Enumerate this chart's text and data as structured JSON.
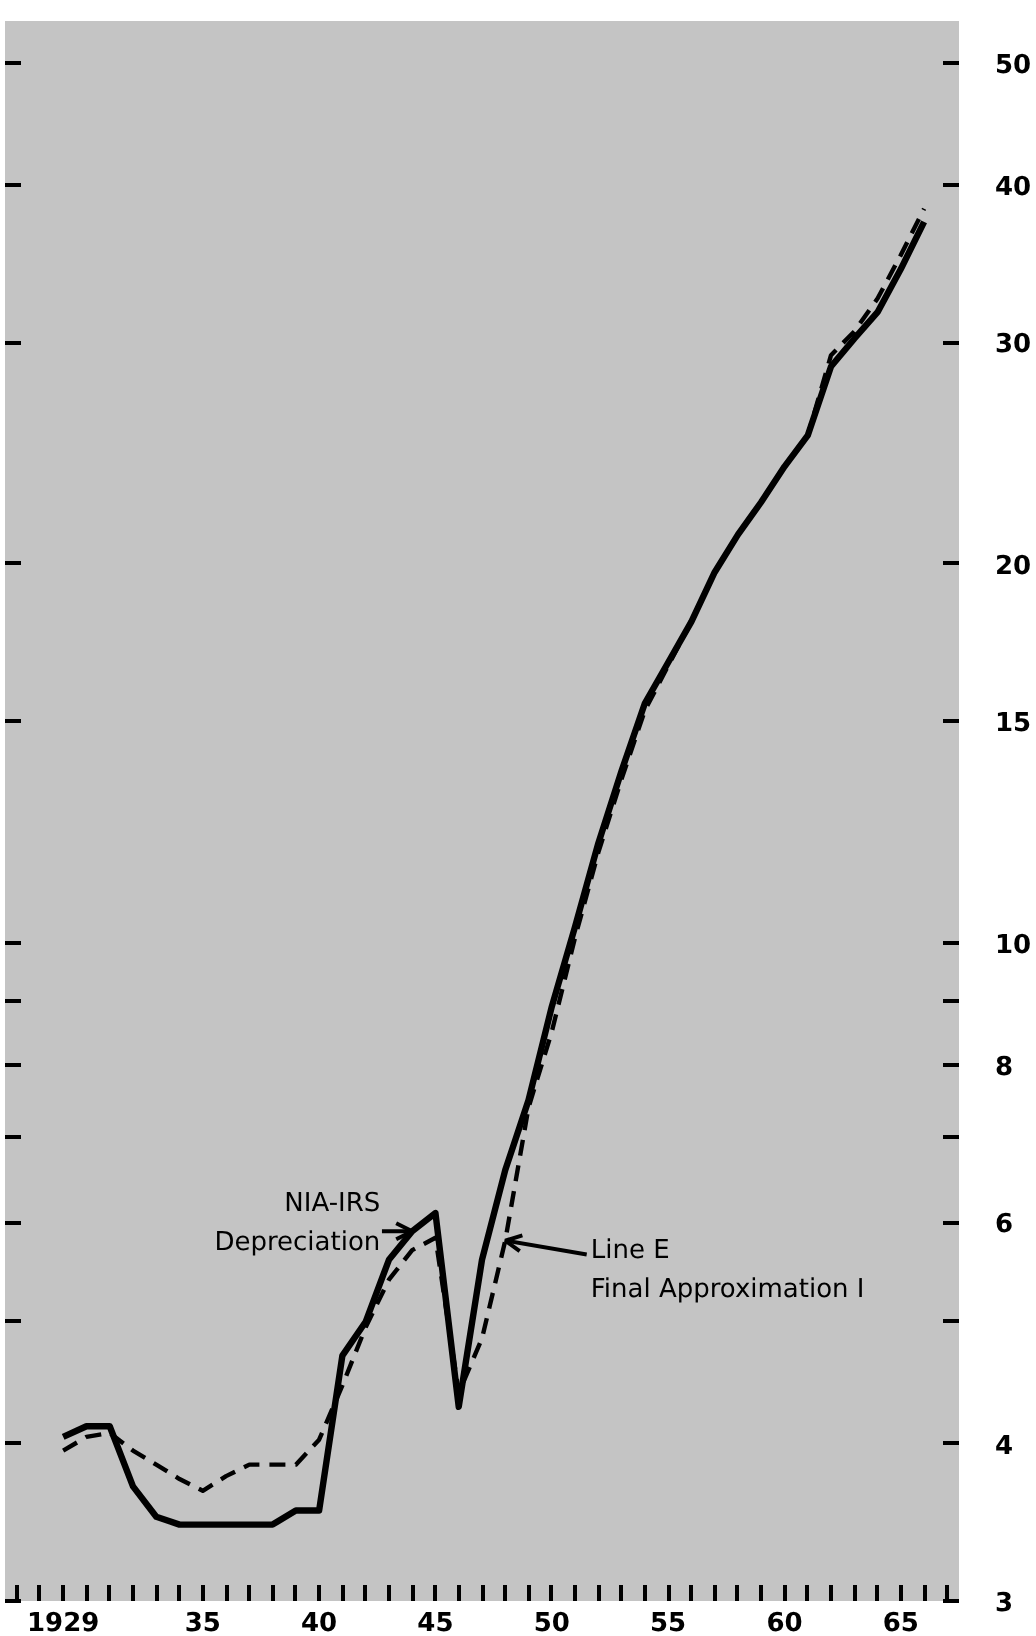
{
  "chart_data": {
    "type": "line",
    "log": "y",
    "grid": false,
    "xlim": [
      1926.5,
      1967.5
    ],
    "ylim": [
      3,
      54
    ],
    "xticks": [
      {
        "value": 1927,
        "label": null
      },
      {
        "value": 1928,
        "label": null
      },
      {
        "value": 1929,
        "label": "1929"
      },
      {
        "value": 1930,
        "label": null
      },
      {
        "value": 1931,
        "label": null
      },
      {
        "value": 1932,
        "label": null
      },
      {
        "value": 1933,
        "label": null
      },
      {
        "value": 1934,
        "label": null
      },
      {
        "value": 1935,
        "label": "35"
      },
      {
        "value": 1936,
        "label": null
      },
      {
        "value": 1937,
        "label": null
      },
      {
        "value": 1938,
        "label": null
      },
      {
        "value": 1939,
        "label": null
      },
      {
        "value": 1940,
        "label": "40"
      },
      {
        "value": 1941,
        "label": null
      },
      {
        "value": 1942,
        "label": null
      },
      {
        "value": 1943,
        "label": null
      },
      {
        "value": 1944,
        "label": null
      },
      {
        "value": 1945,
        "label": "45"
      },
      {
        "value": 1946,
        "label": null
      },
      {
        "value": 1947,
        "label": null
      },
      {
        "value": 1948,
        "label": null
      },
      {
        "value": 1949,
        "label": null
      },
      {
        "value": 1950,
        "label": "50"
      },
      {
        "value": 1951,
        "label": null
      },
      {
        "value": 1952,
        "label": null
      },
      {
        "value": 1953,
        "label": null
      },
      {
        "value": 1954,
        "label": null
      },
      {
        "value": 1955,
        "label": "55"
      },
      {
        "value": 1956,
        "label": null
      },
      {
        "value": 1957,
        "label": null
      },
      {
        "value": 1958,
        "label": null
      },
      {
        "value": 1959,
        "label": null
      },
      {
        "value": 1960,
        "label": "60"
      },
      {
        "value": 1961,
        "label": null
      },
      {
        "value": 1962,
        "label": null
      },
      {
        "value": 1963,
        "label": null
      },
      {
        "value": 1964,
        "label": null
      },
      {
        "value": 1965,
        "label": "65"
      },
      {
        "value": 1966,
        "label": null
      },
      {
        "value": 1967,
        "label": null
      }
    ],
    "yticks": [
      3,
      4,
      {
        "value": 5,
        "label": null
      },
      6,
      {
        "value": 7,
        "label": null
      },
      8,
      {
        "value": 9,
        "label": null
      },
      10,
      15,
      20,
      30,
      40,
      50
    ],
    "x": [
      1929,
      1930,
      1931,
      1932,
      1933,
      1934,
      1935,
      1936,
      1937,
      1938,
      1939,
      1940,
      1941,
      1942,
      1943,
      1944,
      1945,
      1946,
      1947,
      1948,
      1949,
      1950,
      1951,
      1952,
      1953,
      1954,
      1955,
      1956,
      1957,
      1958,
      1959,
      1960,
      1961,
      1962,
      1963,
      1964,
      1965,
      1966
    ],
    "series": [
      {
        "color": "#000000",
        "line_style": "solid",
        "values": [
          4.05,
          4.13,
          4.13,
          3.7,
          3.5,
          3.45,
          3.45,
          3.45,
          3.45,
          3.45,
          3.54,
          3.54,
          4.7,
          5.0,
          5.6,
          5.9,
          6.1,
          4.28,
          5.6,
          6.6,
          7.5,
          8.9,
          10.3,
          12.0,
          13.7,
          15.5,
          16.7,
          18.0,
          19.7,
          21.1,
          22.4,
          23.9,
          25.3,
          28.7,
          30.2,
          31.7,
          34.3,
          37.4
        ]
      },
      {
        "color": "#000000",
        "line_style": "dashed",
        "values": [
          3.95,
          4.05,
          4.08,
          3.95,
          3.85,
          3.75,
          3.67,
          3.77,
          3.85,
          3.85,
          3.85,
          4.03,
          4.45,
          4.95,
          5.4,
          5.7,
          5.83,
          4.39,
          4.85,
          5.8,
          7.4,
          8.5,
          10.1,
          11.8,
          13.5,
          15.3,
          16.6,
          18.0,
          19.7,
          21.1,
          22.4,
          23.9,
          25.3,
          29.3,
          30.6,
          32.5,
          35.2,
          38.3
        ]
      }
    ],
    "annotations": [
      {
        "text": "NIA-IRS\nDepreciation",
        "x": 1944,
        "y": 5.9
      },
      {
        "text": "Line E\nFinal Approximation I",
        "x": 1948,
        "y": 5.8
      }
    ]
  }
}
